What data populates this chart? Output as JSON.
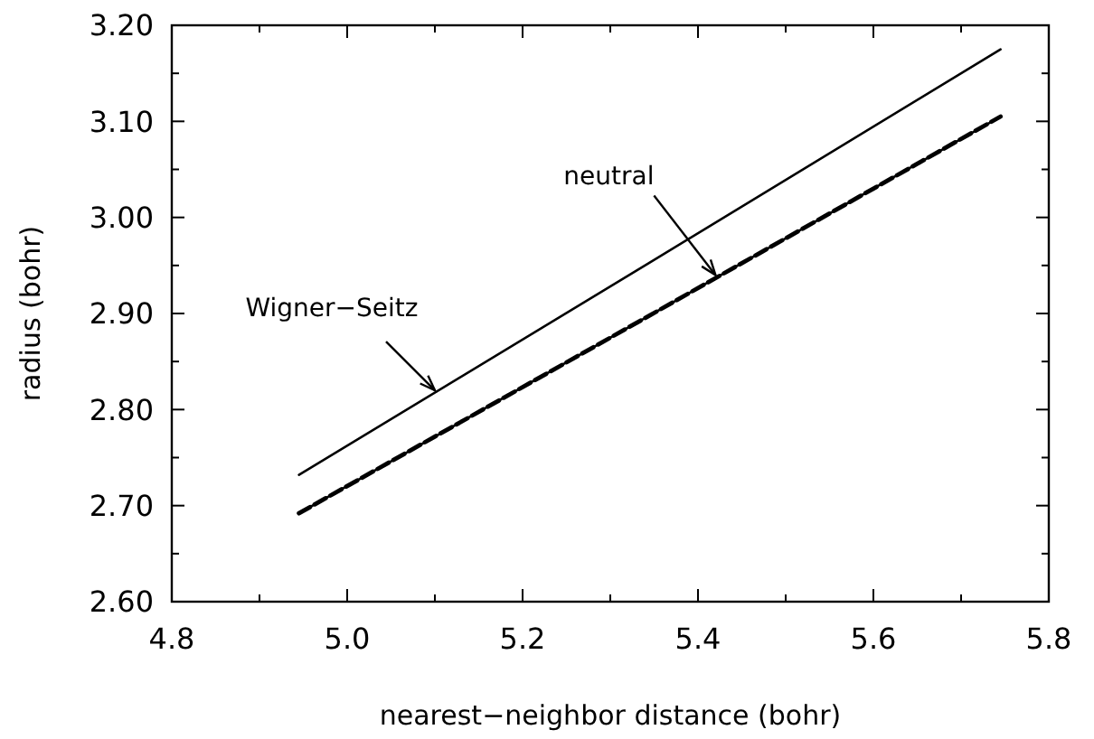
{
  "chart_data": {
    "type": "line",
    "xlabel": "nearest−neighbor distance (bohr)",
    "ylabel": "radius (bohr)",
    "xlim": [
      4.8,
      5.8
    ],
    "ylim": [
      2.6,
      3.2
    ],
    "xticks": [
      4.8,
      {
        "value": 4.9,
        "label": null
      },
      {
        "value": 5.0,
        "label": "5.0"
      },
      {
        "value": 5.1,
        "label": null
      },
      5.2,
      {
        "value": 5.3,
        "label": null
      },
      5.4,
      {
        "value": 5.5,
        "label": null
      },
      5.6,
      {
        "value": 5.7,
        "label": null
      },
      5.8
    ],
    "yticks": [
      {
        "value": 2.6,
        "label": "2.60"
      },
      {
        "value": 2.65,
        "label": null
      },
      {
        "value": 2.7,
        "label": "2.70"
      },
      {
        "value": 2.75,
        "label": null
      },
      {
        "value": 2.8,
        "label": "2.80"
      },
      {
        "value": 2.85,
        "label": null
      },
      {
        "value": 2.9,
        "label": "2.90"
      },
      {
        "value": 2.95,
        "label": null
      },
      {
        "value": 3.0,
        "label": "3.00"
      },
      {
        "value": 3.05,
        "label": null
      },
      {
        "value": 3.1,
        "label": "3.10"
      },
      {
        "value": 3.15,
        "label": null
      },
      {
        "value": 3.2,
        "label": "3.20"
      }
    ],
    "x": [
      4.945,
      5.345,
      5.745
    ],
    "series": [
      {
        "color": "#000000",
        "values": [
          2.732,
          2.953,
          3.175
        ],
        "line_style": "solid"
      },
      {
        "color": "#000000",
        "values": [
          2.692,
          2.898,
          3.105
        ],
        "line_style": "solid"
      },
      {
        "color": "#000000",
        "values": [
          2.692,
          2.898,
          3.105
        ],
        "line_style": "dashed"
      }
    ],
    "annotations": [
      {
        "text": "Wigner−Seitz",
        "x": 5.1,
        "y": 2.82
      },
      {
        "text": "neutral",
        "x": 5.42,
        "y": 2.94
      }
    ],
    "grid": false,
    "marker": "none"
  }
}
